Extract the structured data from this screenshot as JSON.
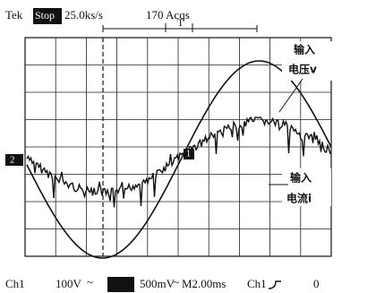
{
  "header": {
    "brand": "Tek",
    "state": "Stop",
    "rate": "25.0ks/s",
    "acqs": "170 Acqs",
    "trigger": "T"
  },
  "annotations": [
    {
      "line1": "输入",
      "line2": "电压v"
    },
    {
      "line1": "输入",
      "line2": "电流i"
    }
  ],
  "markers": {
    "ch2": "2",
    "ch1": "1"
  },
  "footer": {
    "ch1": "Ch1",
    "ch1_scale": "100V",
    "coupling": "~",
    "ch2_scale": "500mV",
    "coupling2": "~",
    "timebase": "M2.00ms",
    "trig_source": "Ch1",
    "trig_level": "0"
  }
}
